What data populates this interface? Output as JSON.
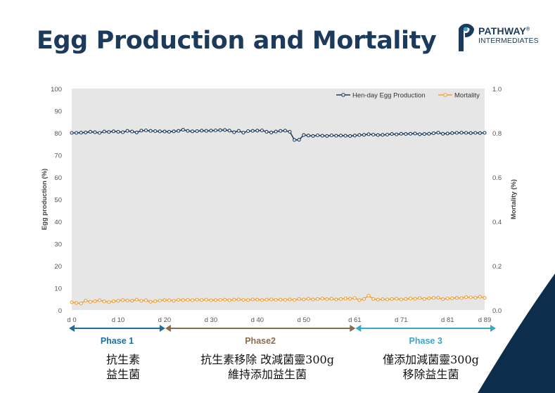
{
  "slide": {
    "title": "Egg Production and Mortality"
  },
  "logo": {
    "name": "PATHWAY",
    "registered": "®",
    "subtitle": "INTERMEDIATES"
  },
  "chart_data": {
    "type": "line",
    "x_tick_labels": [
      "d 0",
      "d 10",
      "d 20",
      "d 30",
      "d 40",
      "d 50",
      "d 61",
      "d 71",
      "d 81",
      "d 89"
    ],
    "x_tick_days": [
      0,
      10,
      20,
      30,
      40,
      50,
      61,
      71,
      81,
      89
    ],
    "xlim": [
      0,
      89
    ],
    "ylabel_left": "Egg production (%)",
    "ylabel_right": "Mortality (%)",
    "ylim_left": [
      0,
      100
    ],
    "ylim_right": [
      0,
      1.0
    ],
    "yticks_left": [
      "0",
      "10",
      "20",
      "30",
      "40",
      "50",
      "60",
      "70",
      "80",
      "90",
      "100"
    ],
    "yticks_right": [
      "0.0",
      "0.2",
      "0.4",
      "0.6",
      "0.8",
      "1.0"
    ],
    "legend_position": "top-right",
    "grid": false,
    "series": [
      {
        "name": "Hen-day Egg Production",
        "axis": "left",
        "color": "#1b3a5c",
        "values": [
          80.0,
          80.0,
          80.1,
          80.2,
          80.5,
          80.3,
          80.0,
          80.6,
          80.4,
          80.7,
          80.5,
          80.3,
          80.9,
          80.6,
          80.2,
          81.0,
          81.1,
          80.9,
          80.8,
          80.7,
          80.6,
          80.5,
          80.7,
          80.9,
          81.4,
          80.9,
          80.7,
          80.8,
          81.0,
          80.9,
          81.0,
          81.1,
          81.2,
          81.3,
          81.0,
          80.3,
          80.9,
          80.1,
          80.8,
          80.9,
          81.0,
          81.1,
          80.5,
          80.2,
          80.6,
          80.9,
          81.0,
          80.5,
          76.8,
          76.9,
          79.0,
          78.8,
          78.6,
          78.9,
          78.7,
          78.6,
          78.9,
          78.7,
          78.8,
          78.7,
          78.6,
          78.8,
          79.0,
          79.1,
          79.4,
          79.2,
          79.0,
          79.1,
          79.2,
          79.5,
          79.3,
          79.6,
          79.5,
          79.6,
          79.7,
          79.4,
          79.5,
          79.6,
          79.8,
          80.1,
          79.6,
          79.7,
          79.9,
          80.0,
          80.1,
          80.0,
          79.9,
          80.0,
          79.9,
          80.0
        ]
      },
      {
        "name": "Mortality",
        "axis": "right",
        "color": "#f0a030",
        "values": [
          0.035,
          0.032,
          0.03,
          0.043,
          0.037,
          0.04,
          0.044,
          0.039,
          0.036,
          0.04,
          0.042,
          0.045,
          0.043,
          0.042,
          0.047,
          0.042,
          0.044,
          0.037,
          0.04,
          0.043,
          0.045,
          0.044,
          0.042,
          0.046,
          0.045,
          0.046,
          0.044,
          0.047,
          0.045,
          0.047,
          0.044,
          0.045,
          0.046,
          0.047,
          0.044,
          0.047,
          0.048,
          0.046,
          0.045,
          0.048,
          0.047,
          0.045,
          0.047,
          0.048,
          0.046,
          0.047,
          0.046,
          0.048,
          0.046,
          0.05,
          0.048,
          0.051,
          0.048,
          0.05,
          0.052,
          0.049,
          0.051,
          0.048,
          0.05,
          0.052,
          0.051,
          0.054,
          0.045,
          0.05,
          0.065,
          0.05,
          0.047,
          0.049,
          0.048,
          0.05,
          0.051,
          0.048,
          0.05,
          0.052,
          0.051,
          0.054,
          0.05,
          0.053,
          0.055,
          0.056,
          0.049,
          0.052,
          0.053,
          0.055,
          0.054,
          0.058,
          0.057,
          0.056,
          0.06,
          0.055
        ]
      }
    ],
    "phases": [
      {
        "label": "Phase 1",
        "color": "#1d6f9e"
      },
      {
        "label": "Phase2",
        "color": "#8a6d4e"
      },
      {
        "label": "Phase 3",
        "color": "#3aa7c9"
      }
    ]
  },
  "notes": [
    {
      "line1": "抗生素",
      "line2": "益生菌"
    },
    {
      "line1": "抗生素移除 改減菌靈300g",
      "line2": "維持添加益生菌"
    },
    {
      "line1": "僅添加減菌靈300g",
      "line2": "移除益生菌"
    }
  ]
}
